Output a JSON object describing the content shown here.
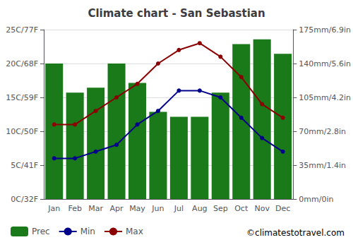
{
  "chart_data": {
    "type": "bar",
    "title": "Climate chart - San Sebastian",
    "categories": [
      "Jan",
      "Feb",
      "Mar",
      "Apr",
      "May",
      "Jun",
      "Jul",
      "Aug",
      "Sep",
      "Oct",
      "Nov",
      "Dec"
    ],
    "series": [
      {
        "name": "Prec",
        "type": "bar",
        "axis": "y2",
        "color": "#1a7a1a",
        "values": [
          140,
          110,
          115,
          140,
          120,
          90,
          85,
          85,
          110,
          160,
          165,
          150
        ]
      },
      {
        "name": "Min",
        "type": "line",
        "color": "#00008B",
        "marker": "circle",
        "values": [
          6.0,
          6.0,
          7.0,
          8.0,
          11.0,
          13.0,
          16.0,
          16.0,
          15.0,
          12.0,
          9.0,
          7.0
        ]
      },
      {
        "name": "Max",
        "type": "line",
        "color": "#8B0000",
        "marker": "circle",
        "values": [
          11.0,
          11.0,
          13.0,
          15.0,
          17.0,
          20.0,
          22.0,
          23.0,
          21.0,
          18.0,
          14.0,
          12.0
        ]
      }
    ],
    "ylim": [
      0,
      25
    ],
    "yticks": [
      {
        "value": 0,
        "label": "0C/32F"
      },
      {
        "value": 5,
        "label": "5C/41F"
      },
      {
        "value": 10,
        "label": "10C/50F"
      },
      {
        "value": 15,
        "label": "15C/59F"
      },
      {
        "value": 20,
        "label": "20C/68F"
      },
      {
        "value": 25,
        "label": "25C/77F"
      }
    ],
    "y2lim": [
      0,
      175
    ],
    "y2ticks": [
      {
        "value": 0,
        "label": "0mm/0in"
      },
      {
        "value": 35,
        "label": "35mm/1.4in"
      },
      {
        "value": 70,
        "label": "70mm/2.8in"
      },
      {
        "value": 105,
        "label": "105mm/4.2in"
      },
      {
        "value": 140,
        "label": "140mm/5.6in"
      },
      {
        "value": 175,
        "label": "175mm/6.9in"
      }
    ],
    "grid": true,
    "legend": "bottom",
    "annotations": [
      "©climatestotravel.com"
    ]
  }
}
